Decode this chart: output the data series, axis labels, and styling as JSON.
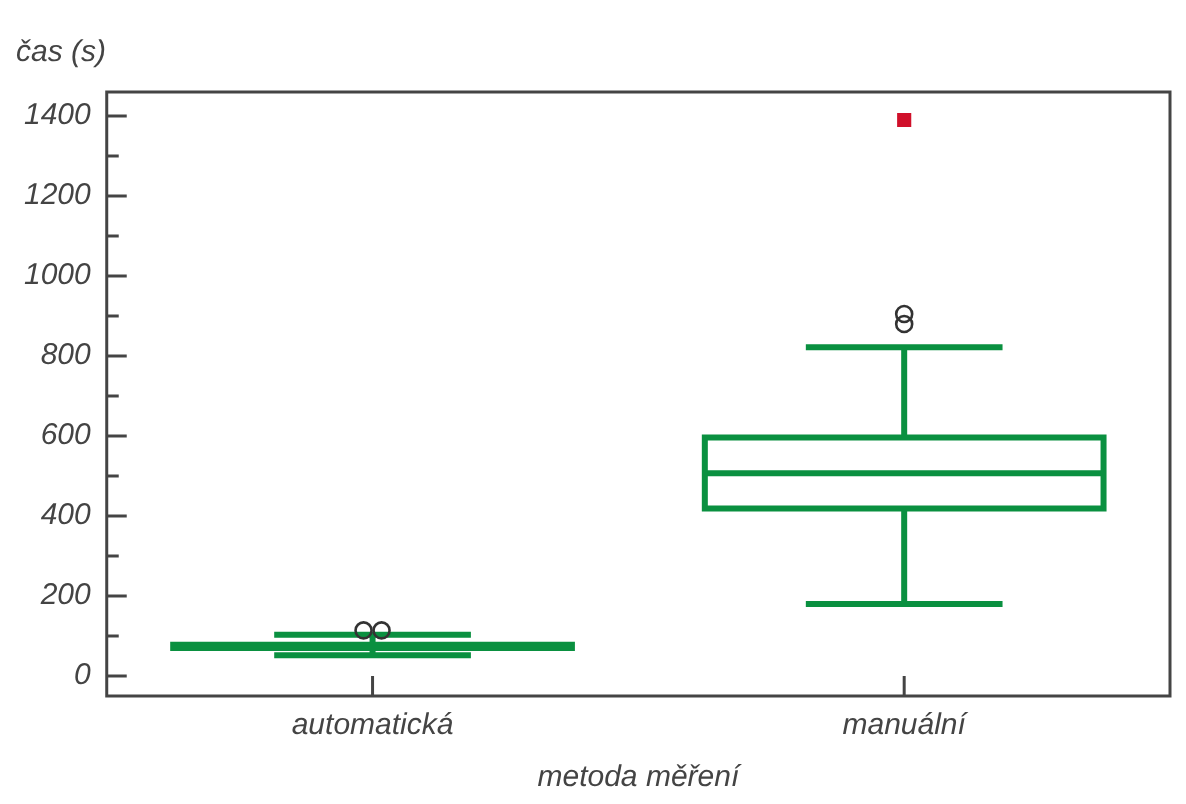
{
  "chart_data": {
    "type": "box",
    "xlabel": "metoda měření",
    "ylabel": "čas (s)",
    "categories": [
      "automatická",
      "manuální"
    ],
    "series": [
      {
        "color": "#0a9040",
        "boxes": [
          {
            "low": 52,
            "q1": 70,
            "median": 74,
            "q3": 78,
            "high": 103,
            "outliers": [
              114,
              114
            ]
          },
          {
            "low": 180,
            "q1": 419,
            "median": 507,
            "q3": 596,
            "high": 822,
            "outliers": [
              880,
              905
            ]
          }
        ]
      },
      {
        "type": "scatter",
        "color": "#d0102a",
        "marker": "square",
        "x": [
          "manuální"
        ],
        "values": [
          1390
        ]
      }
    ],
    "ylim": [
      -50,
      1460
    ],
    "yticks": [
      0,
      {
        "value": 100,
        "label": null
      },
      200,
      {
        "value": 300,
        "label": null
      },
      400,
      {
        "value": 500,
        "label": null
      },
      600,
      {
        "value": 700,
        "label": null
      },
      800,
      {
        "value": 900,
        "label": null
      },
      1000,
      {
        "value": 1100,
        "label": null
      },
      1200,
      {
        "value": 1300,
        "label": null
      },
      1400
    ],
    "grid": false,
    "legend": false
  }
}
